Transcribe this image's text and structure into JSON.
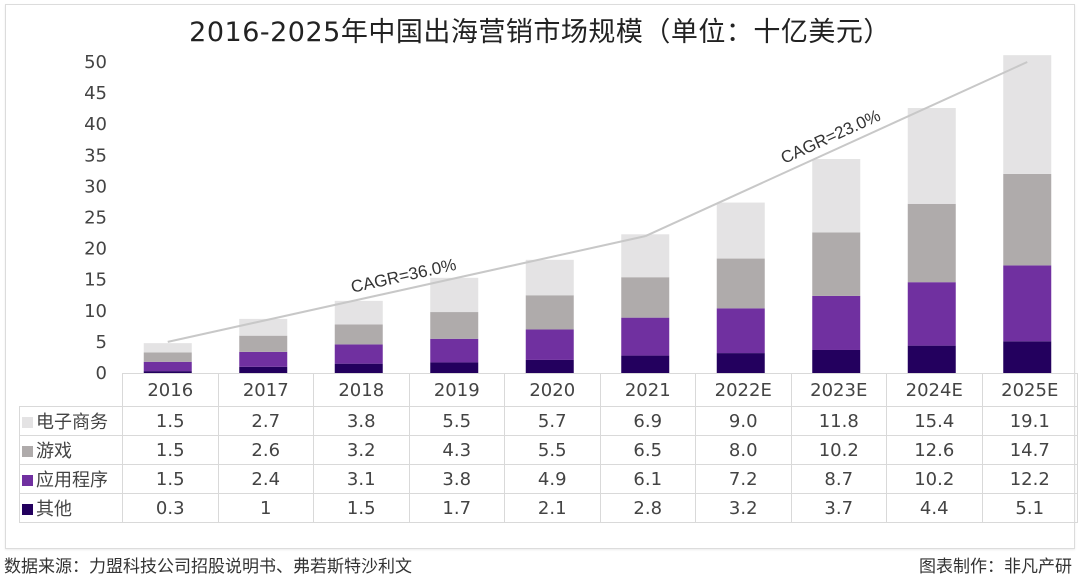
{
  "chart_data": {
    "type": "bar",
    "stacked": true,
    "title": "2016-2025年中国出海营销市场规模（单位：十亿美元）",
    "xlabel": "",
    "ylabel": "",
    "ylim": [
      0,
      50
    ],
    "yticks": [
      "0",
      "5",
      "10",
      "15",
      "20",
      "25",
      "30",
      "35",
      "40",
      "45",
      "50"
    ],
    "grid": false,
    "legend": "data-table-left",
    "categories": [
      "2016",
      "2017",
      "2018",
      "2019",
      "2020",
      "2021",
      "2022E",
      "2023E",
      "2024E",
      "2025E"
    ],
    "series": [
      {
        "name": "其他",
        "color": "#23005e",
        "values": [
          0.3,
          1,
          1.5,
          1.7,
          2.1,
          2.8,
          3.2,
          3.7,
          4.4,
          5.1
        ]
      },
      {
        "name": "应用程序",
        "color": "#7030a0",
        "values": [
          1.5,
          2.4,
          3.1,
          3.8,
          4.9,
          6.1,
          7.2,
          8.7,
          10.2,
          12.2
        ]
      },
      {
        "name": "游戏",
        "color": "#afabab",
        "values": [
          1.5,
          2.6,
          3.2,
          4.3,
          5.5,
          6.5,
          8.0,
          10.2,
          12.6,
          14.7
        ]
      },
      {
        "name": "电子商务",
        "color": "#e4e3e4",
        "values": [
          1.5,
          2.7,
          3.8,
          5.5,
          5.7,
          6.9,
          9.0,
          11.8,
          15.4,
          19.1
        ]
      }
    ],
    "table_rows": [
      {
        "name": "电子商务",
        "color": "#e4e3e4",
        "values": [
          "1.5",
          "2.7",
          "3.8",
          "5.5",
          "5.7",
          "6.9",
          "9.0",
          "11.8",
          "15.4",
          "19.1"
        ]
      },
      {
        "name": "游戏",
        "color": "#afabab",
        "values": [
          "1.5",
          "2.6",
          "3.2",
          "4.3",
          "5.5",
          "6.5",
          "8.0",
          "10.2",
          "12.6",
          "14.7"
        ]
      },
      {
        "name": "应用程序",
        "color": "#7030a0",
        "values": [
          "1.5",
          "2.4",
          "3.1",
          "3.8",
          "4.9",
          "6.1",
          "7.2",
          "8.7",
          "10.2",
          "12.2"
        ]
      },
      {
        "name": "其他",
        "color": "#23005e",
        "values": [
          "0.3",
          "1",
          "1.5",
          "1.7",
          "2.1",
          "2.8",
          "3.2",
          "3.7",
          "4.4",
          "5.1"
        ]
      }
    ],
    "trend_lines": [
      {
        "label": "CAGR=36.0%",
        "from": "2016",
        "to": "2021",
        "from_value": 5,
        "to_value": 22
      },
      {
        "label": "CAGR=23.0%",
        "from": "2021",
        "to": "2025E",
        "from_value": 22,
        "to_value": 50
      }
    ],
    "trend_color": "#c8c8c8"
  },
  "footer": {
    "source": "数据来源：力盟科技公司招股说明书、弗若斯特沙利文",
    "credit": "图表制作：非凡产研"
  }
}
